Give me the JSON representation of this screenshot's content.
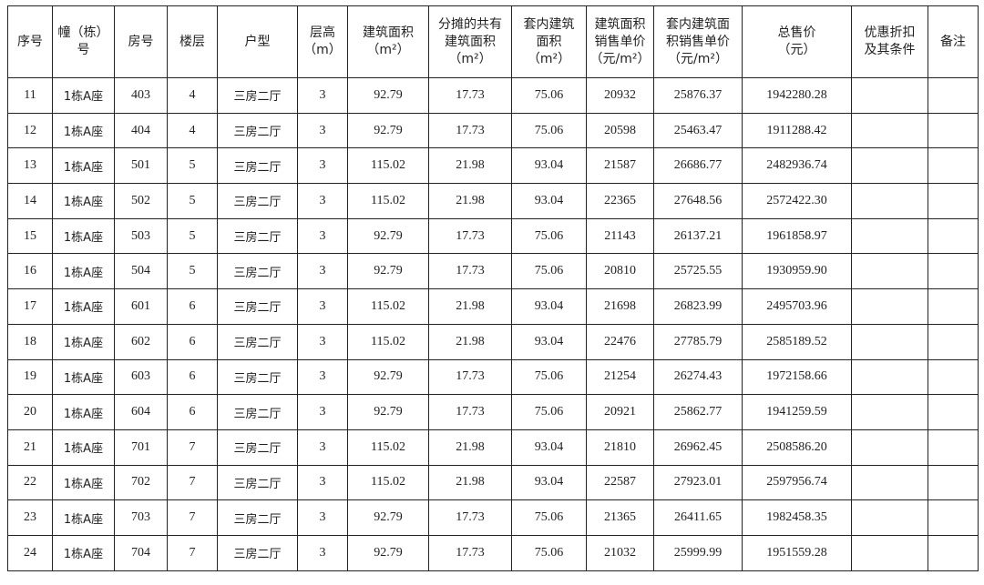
{
  "table": {
    "headers": [
      "序号",
      "幢（栋）\n号",
      "房号",
      "楼层",
      "户型",
      "层高\n（m）",
      "建筑面积\n（m²）",
      "分摊的共有\n建筑面积\n（m²）",
      "套内建筑\n面积\n（m²）",
      "建筑面积\n销售单价\n（元/m²）",
      "套内建筑面\n积销售单价\n（元/m²）",
      "总售价\n（元）",
      "优惠折扣\n及其条件",
      "备注"
    ],
    "rows": [
      [
        "11",
        "1栋A座",
        "403",
        "4",
        "三房二厅",
        "3",
        "92.79",
        "17.73",
        "75.06",
        "20932",
        "25876.37",
        "1942280.28",
        "",
        ""
      ],
      [
        "12",
        "1栋A座",
        "404",
        "4",
        "三房二厅",
        "3",
        "92.79",
        "17.73",
        "75.06",
        "20598",
        "25463.47",
        "1911288.42",
        "",
        ""
      ],
      [
        "13",
        "1栋A座",
        "501",
        "5",
        "三房二厅",
        "3",
        "115.02",
        "21.98",
        "93.04",
        "21587",
        "26686.77",
        "2482936.74",
        "",
        ""
      ],
      [
        "14",
        "1栋A座",
        "502",
        "5",
        "三房二厅",
        "3",
        "115.02",
        "21.98",
        "93.04",
        "22365",
        "27648.56",
        "2572422.30",
        "",
        ""
      ],
      [
        "15",
        "1栋A座",
        "503",
        "5",
        "三房二厅",
        "3",
        "92.79",
        "17.73",
        "75.06",
        "21143",
        "26137.21",
        "1961858.97",
        "",
        ""
      ],
      [
        "16",
        "1栋A座",
        "504",
        "5",
        "三房二厅",
        "3",
        "92.79",
        "17.73",
        "75.06",
        "20810",
        "25725.55",
        "1930959.90",
        "",
        ""
      ],
      [
        "17",
        "1栋A座",
        "601",
        "6",
        "三房二厅",
        "3",
        "115.02",
        "21.98",
        "93.04",
        "21698",
        "26823.99",
        "2495703.96",
        "",
        ""
      ],
      [
        "18",
        "1栋A座",
        "602",
        "6",
        "三房二厅",
        "3",
        "115.02",
        "21.98",
        "93.04",
        "22476",
        "27785.79",
        "2585189.52",
        "",
        ""
      ],
      [
        "19",
        "1栋A座",
        "603",
        "6",
        "三房二厅",
        "3",
        "92.79",
        "17.73",
        "75.06",
        "21254",
        "26274.43",
        "1972158.66",
        "",
        ""
      ],
      [
        "20",
        "1栋A座",
        "604",
        "6",
        "三房二厅",
        "3",
        "92.79",
        "17.73",
        "75.06",
        "20921",
        "25862.77",
        "1941259.59",
        "",
        ""
      ],
      [
        "21",
        "1栋A座",
        "701",
        "7",
        "三房二厅",
        "3",
        "115.02",
        "21.98",
        "93.04",
        "21810",
        "26962.45",
        "2508586.20",
        "",
        ""
      ],
      [
        "22",
        "1栋A座",
        "702",
        "7",
        "三房二厅",
        "3",
        "115.02",
        "21.98",
        "93.04",
        "22587",
        "27923.01",
        "2597956.74",
        "",
        ""
      ],
      [
        "23",
        "1栋A座",
        "703",
        "7",
        "三房二厅",
        "3",
        "92.79",
        "17.73",
        "75.06",
        "21365",
        "26411.65",
        "1982458.35",
        "",
        ""
      ],
      [
        "24",
        "1栋A座",
        "704",
        "7",
        "三房二厅",
        "3",
        "92.79",
        "17.73",
        "75.06",
        "21032",
        "25999.99",
        "1951559.28",
        "",
        ""
      ]
    ]
  }
}
